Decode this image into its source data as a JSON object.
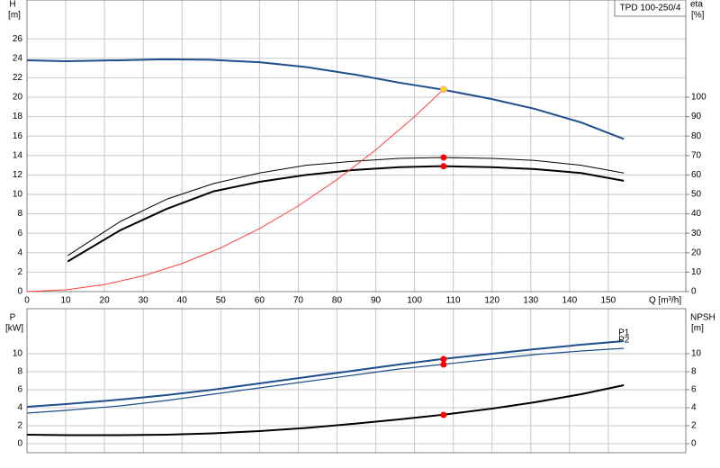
{
  "chart_data": [
    {
      "type": "line",
      "title": "TPD 100-250/4",
      "xlabel": "Q [m³/h]",
      "ylabel": "H",
      "yunit": "[m]",
      "y2label": "eta",
      "y2unit": "[%]",
      "xlim": [
        0,
        170
      ],
      "xticks": [
        0,
        10,
        20,
        30,
        40,
        50,
        60,
        70,
        80,
        90,
        100,
        110,
        120,
        130,
        140,
        150
      ],
      "ylim": [
        0,
        30
      ],
      "yticks": [
        0,
        2,
        4,
        6,
        8,
        10,
        12,
        14,
        16,
        18,
        20,
        22,
        24,
        26
      ],
      "y2lim": [
        0,
        150
      ],
      "y2ticks": [
        0,
        10,
        20,
        30,
        40,
        50,
        60,
        70,
        80,
        90,
        100
      ],
      "grid": true,
      "series": [
        {
          "color": "#1f4e8c",
          "width": 2,
          "x": [
            0,
            10,
            24,
            35,
            47,
            60,
            72,
            85,
            96,
            107,
            120,
            131,
            143,
            154
          ],
          "values": [
            23.8,
            23.7,
            23.8,
            23.9,
            23.85,
            23.6,
            23.1,
            22.3,
            21.5,
            20.8,
            19.8,
            18.8,
            17.4,
            15.7
          ]
        },
        {
          "color": "#000000",
          "width": 2,
          "axis": "y2",
          "x": [
            10.5,
            24,
            36,
            48,
            60,
            72,
            84,
            96,
            107,
            120,
            131,
            143,
            154
          ],
          "values": [
            15.5,
            31.5,
            42.5,
            51.5,
            56.5,
            60,
            62.5,
            64,
            64.5,
            64,
            63,
            61,
            57
          ]
        },
        {
          "color": "#000000",
          "width": 1,
          "axis": "y2",
          "x": [
            10.5,
            24,
            36,
            48,
            60,
            72,
            84,
            96,
            107,
            120,
            131,
            143,
            154
          ],
          "values": [
            18.5,
            36,
            47.5,
            55.5,
            61,
            65,
            67,
            68.5,
            69,
            68.5,
            67.5,
            65,
            61
          ]
        },
        {
          "color": "#ff4040",
          "width": 1,
          "x": [
            0,
            10,
            20,
            30,
            40,
            50,
            60,
            70,
            80,
            90,
            100,
            108
          ],
          "values": [
            0,
            0.18,
            0.72,
            1.62,
            2.88,
            4.5,
            6.48,
            8.82,
            11.52,
            14.58,
            18.0,
            21.0
          ]
        }
      ],
      "points": [
        {
          "x": 107.5,
          "y": 20.8,
          "color": "#ffd700"
        },
        {
          "x": 107.5,
          "y": 64.5,
          "color": "#ff0000",
          "axis": "y2"
        },
        {
          "x": 107.5,
          "y": 69,
          "color": "#ff0000",
          "axis": "y2"
        }
      ]
    },
    {
      "type": "line",
      "ylabel": "P",
      "yunit": "[kW]",
      "y2label": "NPSH",
      "y2unit": "[m]",
      "xlim": [
        0,
        170
      ],
      "xticks": [
        0,
        10,
        20,
        30,
        40,
        50,
        60,
        70,
        80,
        90,
        100,
        110,
        120,
        130,
        140,
        150
      ],
      "ylim": [
        -1,
        15
      ],
      "yticks": [
        0,
        2,
        4,
        6,
        8,
        10
      ],
      "y2lim": [
        -1,
        15
      ],
      "y2ticks": [
        0,
        2,
        4,
        6,
        8,
        10
      ],
      "grid": true,
      "series": [
        {
          "name": "P1",
          "color": "#1f4e8c",
          "width": 2,
          "x": [
            0,
            10,
            24,
            36,
            48,
            60,
            72,
            84,
            96,
            107,
            120,
            131,
            143,
            154
          ],
          "values": [
            4.1,
            4.4,
            4.9,
            5.4,
            6.0,
            6.7,
            7.4,
            8.1,
            8.8,
            9.4,
            10.0,
            10.5,
            11.0,
            11.4
          ]
        },
        {
          "name": "P2",
          "color": "#1f4e8c",
          "width": 1.2,
          "x": [
            0,
            10,
            24,
            36,
            48,
            60,
            72,
            84,
            96,
            107,
            120,
            131,
            143,
            154
          ],
          "values": [
            3.4,
            3.7,
            4.2,
            4.8,
            5.5,
            6.2,
            6.9,
            7.6,
            8.3,
            8.8,
            9.4,
            9.9,
            10.3,
            10.6
          ]
        },
        {
          "color": "#000000",
          "width": 2,
          "axis": "y2",
          "x": [
            0,
            10,
            24,
            36,
            48,
            60,
            72,
            84,
            96,
            107,
            120,
            131,
            143,
            154
          ],
          "values": [
            1.0,
            0.95,
            0.95,
            1.0,
            1.15,
            1.4,
            1.75,
            2.2,
            2.7,
            3.2,
            3.9,
            4.6,
            5.5,
            6.5
          ]
        }
      ],
      "points": [
        {
          "x": 107.5,
          "y": 9.4,
          "color": "#ff0000"
        },
        {
          "x": 107.5,
          "y": 8.8,
          "color": "#ff0000"
        },
        {
          "x": 107.5,
          "y": 3.2,
          "color": "#ff0000",
          "axis": "y2"
        }
      ]
    }
  ]
}
